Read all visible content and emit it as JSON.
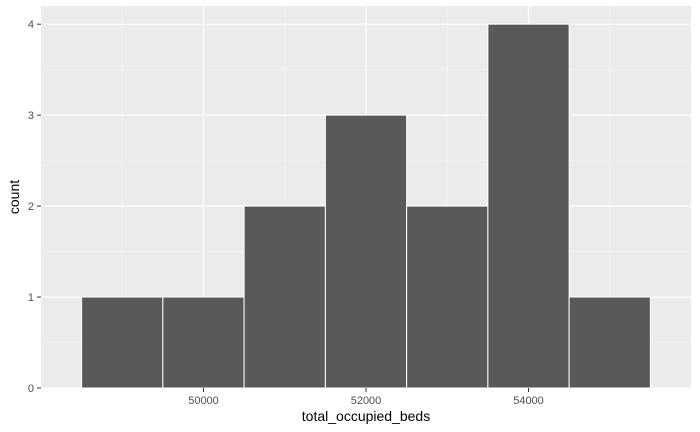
{
  "chart_data": {
    "type": "bar",
    "subtype": "histogram",
    "title": "",
    "xlabel": "total_occupied_beds",
    "ylabel": "count",
    "bin_width": 1000,
    "bins": [
      {
        "x_start": 48500,
        "x_end": 49500,
        "count": 1
      },
      {
        "x_start": 49500,
        "x_end": 50500,
        "count": 1
      },
      {
        "x_start": 50500,
        "x_end": 51500,
        "count": 2
      },
      {
        "x_start": 51500,
        "x_end": 52500,
        "count": 3
      },
      {
        "x_start": 52500,
        "x_end": 53500,
        "count": 2
      },
      {
        "x_start": 53500,
        "x_end": 54500,
        "count": 4
      },
      {
        "x_start": 54500,
        "x_end": 55500,
        "count": 1
      }
    ],
    "xlim": [
      48000,
      56000
    ],
    "ylim": [
      0,
      4.2
    ],
    "x_ticks": [
      50000,
      52000,
      54000
    ],
    "x_tick_labels": [
      "50000",
      "52000",
      "54000"
    ],
    "x_minor_ticks": [
      49000,
      51000,
      53000,
      55000
    ],
    "y_ticks": [
      0,
      1,
      2,
      3,
      4
    ],
    "y_tick_labels": [
      "0",
      "1",
      "2",
      "3",
      "4"
    ],
    "y_minor_ticks": [
      0.5,
      1.5,
      2.5,
      3.5
    ],
    "grid": true,
    "legend": "none",
    "colors": {
      "panel_background": "#ebebeb",
      "grid_major": "#ffffff",
      "grid_minor": "#f5f5f5",
      "bar_fill": "#595959",
      "bar_outline": "#ffffff",
      "tick_mark": "#333333",
      "tick_text": "#4d4d4d"
    }
  }
}
